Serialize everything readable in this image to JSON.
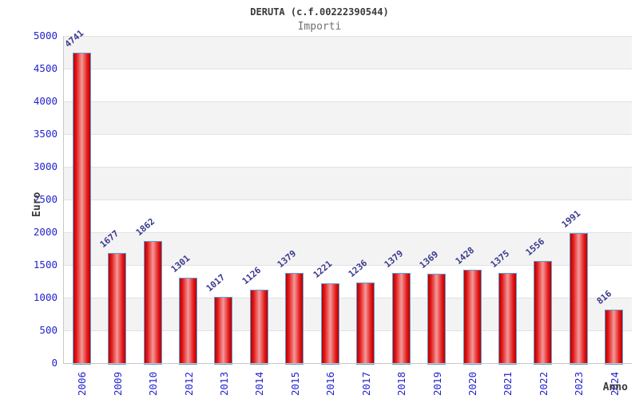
{
  "chart_data": {
    "type": "bar",
    "title": "DERUTA (c.f.00222390544)",
    "subtitle": "Importi",
    "xlabel": "Anno",
    "ylabel": "Euro",
    "categories": [
      "2006",
      "2009",
      "2010",
      "2012",
      "2013",
      "2014",
      "2015",
      "2016",
      "2017",
      "2018",
      "2019",
      "2020",
      "2021",
      "2022",
      "2023",
      "2024"
    ],
    "values": [
      4741,
      1677,
      1862,
      1301,
      1017,
      1126,
      1379,
      1221,
      1236,
      1379,
      1369,
      1428,
      1375,
      1556,
      1991,
      816
    ],
    "ylim": [
      0,
      5000
    ],
    "ytick_step": 500,
    "yticks": [
      0,
      500,
      1000,
      1500,
      2000,
      2500,
      3000,
      3500,
      4000,
      4500,
      5000
    ],
    "grid": true,
    "legend": "none",
    "colors": {
      "bar_fill_edge": "#b70000",
      "bar_fill_mid": "#f29a9a",
      "bar_border": "#5f9ed2",
      "tick_label": "#2323cd",
      "value_label": "#3b3b8f",
      "band_gray": "#f3f3f3",
      "band_white": "#ffffff",
      "gridline": "#e2e2e2",
      "axis_line": "#c8c8c8",
      "title_text": "#3a3a3a",
      "subtitle_text": "#707070"
    }
  }
}
